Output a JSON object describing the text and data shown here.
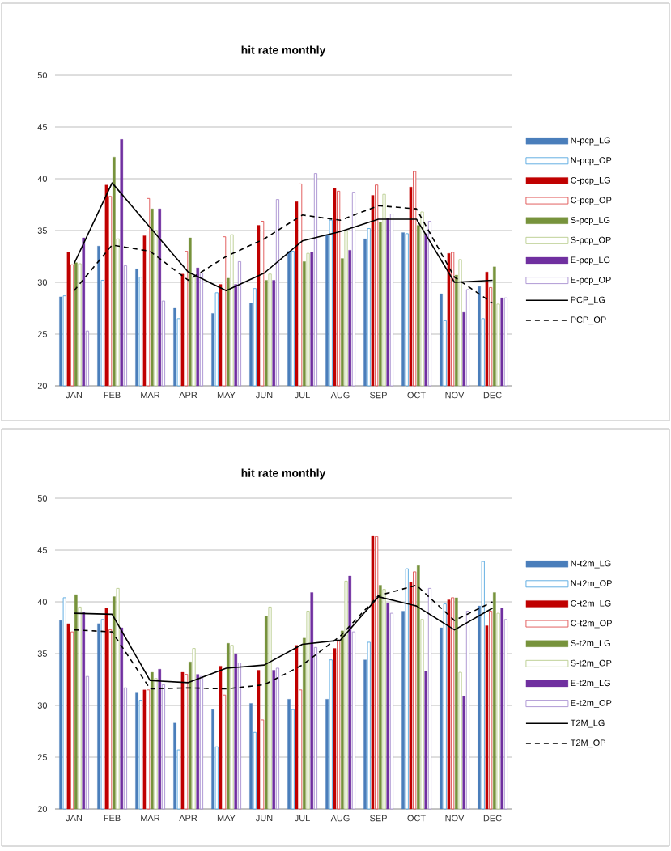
{
  "chart_data": [
    {
      "type": "bar",
      "title": "hit rate monthly",
      "categories": [
        "JAN",
        "FEB",
        "MAR",
        "APR",
        "MAY",
        "JUN",
        "JUL",
        "AUG",
        "SEP",
        "OCT",
        "NOV",
        "DEC"
      ],
      "ylim": [
        20,
        50
      ],
      "yticks": [
        20,
        25,
        30,
        35,
        40,
        45,
        50
      ],
      "grid": "y",
      "legend": "right",
      "series": [
        {
          "name": "N-pcp_LG",
          "color": "#4a7ebb",
          "values": [
            28.6,
            33.5,
            31.3,
            27.5,
            27.0,
            28.0,
            33.0,
            34.6,
            34.2,
            34.8,
            28.9,
            29.6
          ]
        },
        {
          "name": "N-pcp_OP",
          "color": "#55a7e0",
          "values": [
            28.7,
            30.2,
            30.5,
            26.5,
            29.0,
            29.4,
            33.0,
            36.0,
            35.2,
            34.7,
            26.3,
            26.5
          ]
        },
        {
          "name": "C-pcp_LG",
          "color": "#c00000",
          "values": [
            32.9,
            39.4,
            34.5,
            30.8,
            29.8,
            35.5,
            37.8,
            39.1,
            38.4,
            39.2,
            32.8,
            31.0
          ]
        },
        {
          "name": "C-pcp_OP",
          "color": "#e05050",
          "values": [
            31.7,
            38.3,
            38.1,
            33.0,
            34.4,
            35.9,
            39.5,
            38.8,
            39.4,
            40.7,
            32.9,
            29.5
          ]
        },
        {
          "name": "S-pcp_LG",
          "color": "#77933c",
          "values": [
            31.9,
            42.1,
            37.1,
            34.3,
            30.4,
            30.2,
            32.0,
            32.3,
            35.8,
            35.5,
            30.7,
            31.5
          ]
        },
        {
          "name": "S-pcp_OP",
          "color": "#b8cc8c",
          "values": [
            31.8,
            34.2,
            35.0,
            30.5,
            34.6,
            30.8,
            32.8,
            35.0,
            38.5,
            36.8,
            32.2,
            27.9
          ]
        },
        {
          "name": "E-pcp_LG",
          "color": "#7030a0",
          "values": [
            34.3,
            43.8,
            37.1,
            31.4,
            29.8,
            30.2,
            32.9,
            33.1,
            36.2,
            34.7,
            27.1,
            28.5
          ]
        },
        {
          "name": "E-pcp_OP",
          "color": "#a890d0",
          "values": [
            25.3,
            31.6,
            28.2,
            30.9,
            32.0,
            38.0,
            40.5,
            38.7,
            36.6,
            35.9,
            29.3,
            28.5
          ]
        },
        {
          "name": "PCP_LG",
          "type": "line",
          "line_style": "solid",
          "color": "#000000",
          "values": [
            31.8,
            39.6,
            35.3,
            31.0,
            29.2,
            30.9,
            34.0,
            34.9,
            36.1,
            36.1,
            30.0,
            30.2
          ]
        },
        {
          "name": "PCP_OP",
          "type": "line",
          "line_style": "dashed",
          "color": "#000000",
          "values": [
            29.2,
            33.6,
            33.0,
            30.2,
            32.5,
            34.2,
            36.5,
            36.0,
            37.4,
            37.1,
            30.5,
            28.0
          ]
        }
      ]
    },
    {
      "type": "bar",
      "title": "hit rate monthly",
      "categories": [
        "JAN",
        "FEB",
        "MAR",
        "APR",
        "MAY",
        "JUN",
        "JUL",
        "AUG",
        "SEP",
        "OCT",
        "NOV",
        "DEC"
      ],
      "ylim": [
        20,
        50
      ],
      "yticks": [
        20,
        25,
        30,
        35,
        40,
        45,
        50
      ],
      "grid": "y",
      "legend": "right",
      "series": [
        {
          "name": "N-t2m_LG",
          "color": "#4a7ebb",
          "values": [
            38.2,
            37.9,
            31.2,
            28.3,
            29.6,
            30.2,
            30.6,
            30.6,
            34.4,
            39.1,
            37.5,
            39.6
          ]
        },
        {
          "name": "N-t2m_OP",
          "color": "#55a7e0",
          "values": [
            40.4,
            38.3,
            30.5,
            25.7,
            26.0,
            27.4,
            29.6,
            34.4,
            36.1,
            43.2,
            39.8,
            43.9
          ]
        },
        {
          "name": "C-t2m_LG",
          "color": "#c00000",
          "values": [
            37.9,
            39.4,
            31.5,
            33.2,
            33.8,
            33.4,
            35.8,
            35.5,
            46.4,
            41.9,
            40.2,
            37.7
          ]
        },
        {
          "name": "C-t2m_OP",
          "color": "#e05050",
          "values": [
            37.1,
            37.3,
            31.5,
            33.0,
            31.0,
            28.6,
            31.5,
            36.2,
            46.3,
            42.9,
            40.4,
            39.1
          ]
        },
        {
          "name": "S-t2m_LG",
          "color": "#77933c",
          "values": [
            40.7,
            40.5,
            33.2,
            34.2,
            36.0,
            38.6,
            36.5,
            37.2,
            41.6,
            43.5,
            40.4,
            40.9
          ]
        },
        {
          "name": "S-t2m_OP",
          "color": "#b8cc8c",
          "values": [
            39.5,
            41.3,
            32.6,
            35.5,
            35.8,
            39.5,
            39.1,
            42.0,
            41.2,
            38.3,
            33.2,
            38.9
          ]
        },
        {
          "name": "E-t2m_LG",
          "color": "#7030a0",
          "values": [
            39.0,
            37.5,
            33.5,
            33.0,
            35.0,
            33.4,
            40.9,
            42.5,
            39.9,
            33.3,
            30.9,
            39.4
          ]
        },
        {
          "name": "E-t2m_OP",
          "color": "#a890d0",
          "values": [
            32.8,
            31.7,
            32.0,
            32.8,
            34.1,
            33.6,
            35.6,
            37.1,
            38.9,
            41.3,
            39.1,
            38.3
          ]
        },
        {
          "name": "T2M_LG",
          "type": "line",
          "line_style": "solid",
          "color": "#000000",
          "values": [
            38.9,
            38.8,
            32.4,
            32.2,
            33.6,
            33.9,
            35.9,
            36.3,
            40.5,
            39.6,
            37.3,
            39.4
          ]
        },
        {
          "name": "T2M_OP",
          "type": "line",
          "line_style": "dashed",
          "color": "#000000",
          "values": [
            37.3,
            37.1,
            31.6,
            31.7,
            31.6,
            32.0,
            33.9,
            36.7,
            40.6,
            41.6,
            38.2,
            40.0
          ]
        }
      ]
    }
  ]
}
